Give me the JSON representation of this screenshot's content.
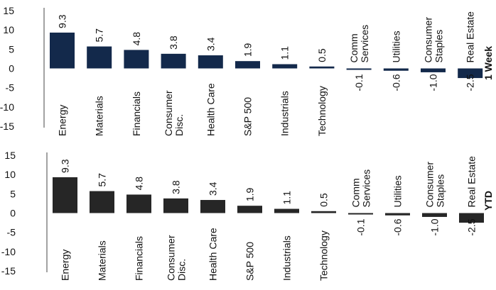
{
  "chart_data": [
    {
      "type": "bar",
      "label": "1 Week",
      "categories": [
        "Energy",
        "Materials",
        "Financials",
        "Consumer Disc.",
        "Health Care",
        "S&P 500",
        "Industrials",
        "Technology",
        "Comm Services",
        "Utilities",
        "Consumer Staples",
        "Real Estate"
      ],
      "values": [
        9.3,
        5.7,
        4.8,
        3.8,
        3.4,
        1.9,
        1.1,
        0.5,
        -0.1,
        -0.6,
        -1.0,
        -2.5
      ],
      "value_labels": [
        "9.3",
        "5.7",
        "4.8",
        "3.8",
        "3.4",
        "1.9",
        "1.1",
        "0.5",
        "-0.1",
        "-0.6",
        "-1.0",
        "-2.5"
      ],
      "yticks": [
        "15",
        "10",
        "5",
        "0",
        "-5",
        "-10",
        "-15"
      ],
      "ylim": [
        -15,
        15
      ],
      "color": "#13294b"
    },
    {
      "type": "bar",
      "label": "YTD",
      "categories": [
        "Energy",
        "Materials",
        "Financials",
        "Consumer Disc.",
        "Health Care",
        "S&P 500",
        "Industrials",
        "Technology",
        "Comm Services",
        "Utilities",
        "Consumer Staples",
        "Real Estate"
      ],
      "values": [
        9.3,
        5.7,
        4.8,
        3.8,
        3.4,
        1.9,
        1.1,
        0.5,
        -0.1,
        -0.6,
        -1.0,
        -2.5
      ],
      "value_labels": [
        "9.3",
        "5.7",
        "4.8",
        "3.8",
        "3.4",
        "1.9",
        "1.1",
        "0.5",
        "-0.1",
        "-0.6",
        "-1.0",
        "-2.5"
      ],
      "yticks": [
        "15",
        "10",
        "5",
        "0",
        "-5",
        "-10",
        "-15"
      ],
      "ylim": [
        -15,
        15
      ],
      "color": "#262626"
    }
  ]
}
